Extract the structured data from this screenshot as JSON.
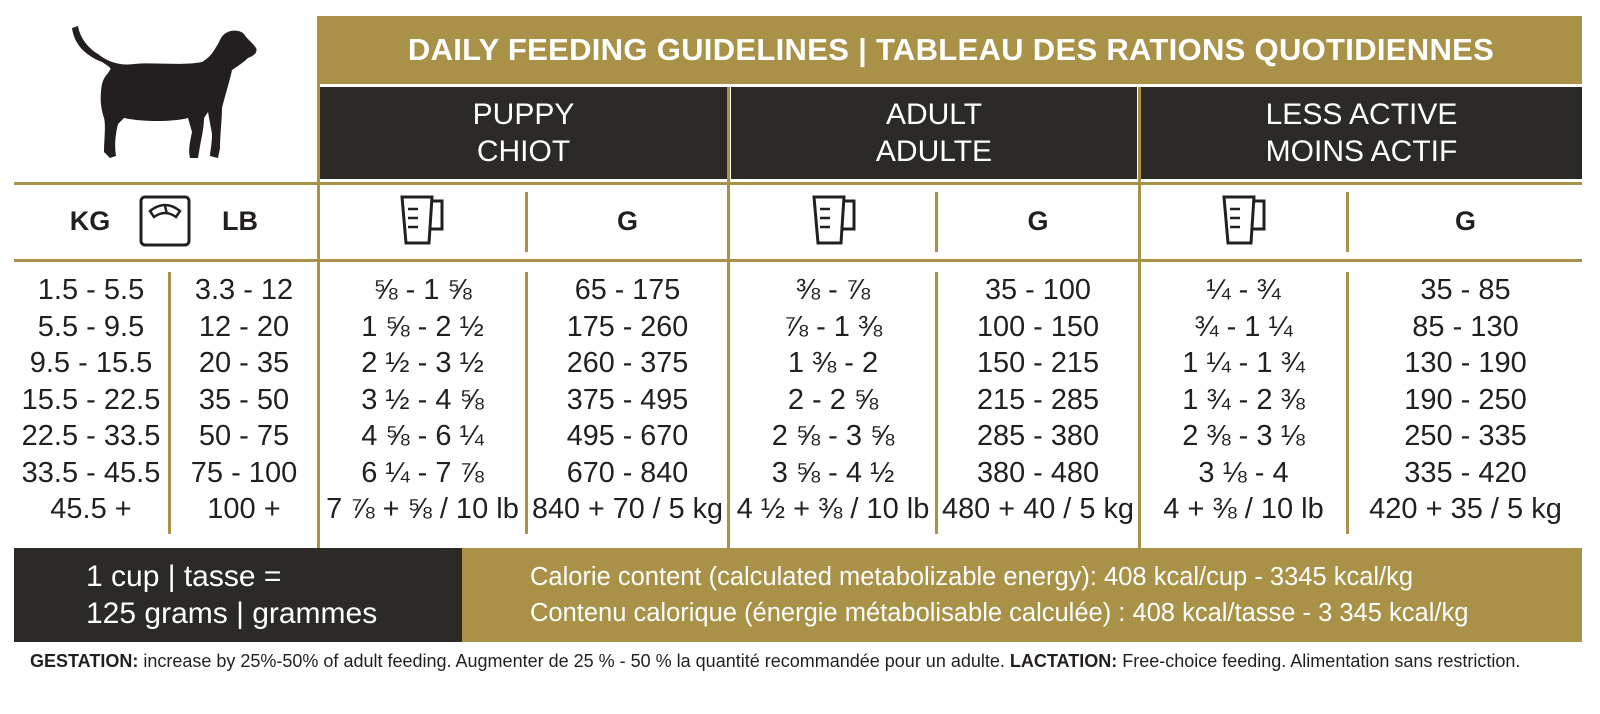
{
  "title": "DAILY FEEDING GUIDELINES | TABLEAU DES RATIONS QUOTIDIENNES",
  "groups": [
    {
      "en": "PUPPY",
      "fr": "CHIOT"
    },
    {
      "en": "ADULT",
      "fr": "ADULTE"
    },
    {
      "en": "LESS ACTIVE",
      "fr": "MOINS ACTIF"
    }
  ],
  "weight_headers": {
    "kg": "KG",
    "lb": "LB"
  },
  "grams_header": "G",
  "icons": {
    "dog": "dog-silhouette-icon",
    "scale": "scale-icon",
    "cup": "measuring-cup-icon"
  },
  "colors": {
    "gold": "#a99147",
    "dark": "#2c2a27",
    "text": "#231f20"
  },
  "columns": {
    "kg": [
      "1.5 - 5.5",
      "5.5 - 9.5",
      "9.5 - 15.5",
      "15.5 - 22.5",
      "22.5 - 33.5",
      "33.5 - 45.5",
      "45.5 +"
    ],
    "lb": [
      "3.3 - 12",
      "12 - 20",
      "20 - 35",
      "35 - 50",
      "50 - 75",
      "75 - 100",
      "100 +"
    ],
    "puppy_cups": [
      "⅝ - 1 ⅝",
      "1 ⅝ - 2 ½",
      "2 ½ - 3 ½",
      "3 ½ - 4 ⅝",
      "4 ⅝ - 6 ¼",
      "6 ¼ - 7 ⅞",
      "7 ⅞ + ⅝ / 10 lb"
    ],
    "puppy_g": [
      "65 - 175",
      "175 - 260",
      "260 - 375",
      "375 - 495",
      "495 - 670",
      "670 - 840",
      "840 + 70 / 5 kg"
    ],
    "adult_cups": [
      "⅜ - ⅞",
      "⅞ - 1 ⅜",
      "1 ⅜ - 2",
      "2 - 2 ⅝",
      "2 ⅝ - 3 ⅝",
      "3 ⅝ - 4 ½",
      "4 ½ + ⅜ / 10 lb"
    ],
    "adult_g": [
      "35 - 100",
      "100 - 150",
      "150 - 215",
      "215 - 285",
      "285 - 380",
      "380 - 480",
      "480 + 40 / 5 kg"
    ],
    "less_cups": [
      "¼ - ¾",
      "¾ - 1 ¼",
      "1 ¼ - 1 ¾",
      "1 ¾ - 2 ⅜",
      "2 ⅜ - 3 ⅛",
      "3 ⅛ - 4",
      "4 + ⅜ / 10 lb"
    ],
    "less_g": [
      "35 - 85",
      "85 - 130",
      "130 - 190",
      "190 - 250",
      "250 - 335",
      "335 - 420",
      "420 + 35 / 5 kg"
    ]
  },
  "cup_box": {
    "line1": "1 cup | tasse =",
    "line2": "125 grams | grammes"
  },
  "calorie": {
    "en": "Calorie content (calculated metabolizable energy): 408 kcal/cup - 3345 kcal/kg",
    "fr": "Contenu calorique (énergie métabolisable calculée) : 408 kcal/tasse - 3 345 kcal/kg"
  },
  "footnote": {
    "gestation_label": "GESTATION:",
    "gestation_text": " increase by 25%-50% of adult feeding. Augmenter de 25 % - 50 % la quantité recommandée pour un adulte. ",
    "lactation_label": "LACTATION:",
    "lactation_text": " Free-choice feeding. Alimentation sans restriction."
  }
}
